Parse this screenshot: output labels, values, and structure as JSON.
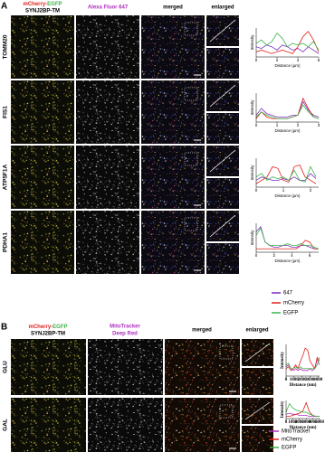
{
  "panel_a": {
    "label": "A",
    "headers": {
      "col1": [
        "mCherry-",
        "EGFP"
      ],
      "col1_line2": "SYNJ2BP-TM",
      "col2": "Alexa Fluor 647",
      "col3": "merged",
      "col4": "enlarged"
    },
    "rows": [
      "TOMM20",
      "FIS1",
      "ATP5F1A",
      "PDHA1"
    ]
  },
  "panel_b": {
    "label": "B",
    "headers": {
      "col1": [
        "mCherry-",
        "EGFP"
      ],
      "col1_line2": "SYNJ2BP-TM",
      "col2": "MitoTracker",
      "col2_line2": "Deep Red",
      "col3": "merged",
      "col4": "enlarged"
    },
    "rows": [
      "GLU",
      "GAL"
    ]
  },
  "chart_data": [
    {
      "type": "line",
      "ylabel": "Intensity",
      "xlabel": "Distance (µm)",
      "xlim": [
        0,
        6
      ],
      "xticks": [
        0,
        2,
        4,
        6
      ],
      "ylim": [
        0,
        0.85
      ],
      "x": [
        0,
        0.5,
        1,
        1.5,
        2,
        2.5,
        3,
        3.5,
        4,
        4.5,
        5,
        5.5,
        6
      ],
      "series": [
        {
          "name": "647",
          "color": "#7b2fbf",
          "values": [
            0.3,
            0.25,
            0.35,
            0.3,
            0.2,
            0.35,
            0.3,
            0.2,
            0.25,
            0.15,
            0.3,
            0.2,
            0.1
          ]
        },
        {
          "name": "mCherry",
          "color": "#e0201a",
          "values": [
            0.15,
            0.2,
            0.15,
            0.1,
            0.15,
            0.2,
            0.15,
            0.1,
            0.3,
            0.6,
            0.75,
            0.5,
            0.15
          ]
        },
        {
          "name": "EGFP",
          "color": "#3cb44b",
          "values": [
            0.4,
            0.5,
            0.35,
            0.45,
            0.7,
            0.55,
            0.3,
            0.4,
            0.35,
            0.4,
            0.3,
            0.45,
            0.2
          ]
        }
      ]
    },
    {
      "type": "line",
      "ylabel": "Intensity",
      "xlabel": "Distance (µm)",
      "xlim": [
        0,
        3
      ],
      "xticks": [
        0,
        1,
        2,
        3
      ],
      "ylim": [
        0,
        0.85
      ],
      "x": [
        0,
        0.25,
        0.5,
        0.75,
        1,
        1.25,
        1.5,
        1.75,
        2,
        2.25,
        2.5,
        2.75,
        3
      ],
      "series": [
        {
          "name": "647",
          "color": "#7b2fbf",
          "values": [
            0.2,
            0.4,
            0.25,
            0.2,
            0.15,
            0.15,
            0.15,
            0.2,
            0.2,
            0.6,
            0.35,
            0.2,
            0.15
          ]
        },
        {
          "name": "mCherry",
          "color": "#e0201a",
          "values": [
            0.1,
            0.3,
            0.15,
            0.1,
            0.1,
            0.1,
            0.1,
            0.15,
            0.2,
            0.7,
            0.4,
            0.15,
            0.1
          ]
        },
        {
          "name": "EGFP",
          "color": "#3cb44b",
          "values": [
            0.15,
            0.3,
            0.2,
            0.15,
            0.1,
            0.1,
            0.1,
            0.15,
            0.2,
            0.5,
            0.3,
            0.15,
            0.1
          ]
        }
      ]
    },
    {
      "type": "line",
      "ylabel": "Intensity",
      "xlabel": "Distance (µm)",
      "xlim": [
        0,
        2.3
      ],
      "xticks": [
        0,
        1,
        2
      ],
      "ylim": [
        0,
        0.85
      ],
      "x": [
        0,
        0.2,
        0.4,
        0.6,
        0.8,
        1,
        1.2,
        1.4,
        1.6,
        1.8,
        2,
        2.2
      ],
      "series": [
        {
          "name": "647",
          "color": "#7b2fbf",
          "values": [
            0.2,
            0.3,
            0.25,
            0.2,
            0.2,
            0.25,
            0.2,
            0.3,
            0.2,
            0.2,
            0.4,
            0.25
          ]
        },
        {
          "name": "mCherry",
          "color": "#e0201a",
          "values": [
            0.1,
            0.2,
            0.3,
            0.6,
            0.55,
            0.2,
            0.15,
            0.6,
            0.65,
            0.3,
            0.2,
            0.1
          ]
        },
        {
          "name": "EGFP",
          "color": "#3cb44b",
          "values": [
            0.3,
            0.4,
            0.2,
            0.3,
            0.25,
            0.3,
            0.2,
            0.5,
            0.2,
            0.15,
            0.6,
            0.3
          ]
        }
      ]
    },
    {
      "type": "line",
      "ylabel": "Intensity",
      "xlabel": "Distance (µm)",
      "xlim": [
        0,
        7
      ],
      "xticks": [
        0,
        2,
        4,
        6
      ],
      "ylim": [
        0,
        0.85
      ],
      "x": [
        0,
        0.5,
        1,
        1.5,
        2,
        2.5,
        3,
        3.5,
        4,
        4.5,
        5,
        5.5,
        6,
        6.5,
        7
      ],
      "series": [
        {
          "name": "647",
          "color": "#7b2fbf",
          "values": [
            0.6,
            0.75,
            0.3,
            0.2,
            0.15,
            0.15,
            0.2,
            0.2,
            0.15,
            0.15,
            0.2,
            0.2,
            0.15,
            0.1,
            0.1
          ]
        },
        {
          "name": "mCherry",
          "color": "#e0201a",
          "values": [
            0.1,
            0.1,
            0.1,
            0.1,
            0.1,
            0.1,
            0.1,
            0.1,
            0.1,
            0.1,
            0.2,
            0.35,
            0.3,
            0.1,
            0.1
          ]
        },
        {
          "name": "EGFP",
          "color": "#3cb44b",
          "values": [
            0.5,
            0.7,
            0.3,
            0.2,
            0.2,
            0.2,
            0.2,
            0.25,
            0.2,
            0.2,
            0.25,
            0.2,
            0.2,
            0.15,
            0.1
          ]
        }
      ]
    },
    {
      "type": "line",
      "ylabel": "Intensity",
      "xlabel": "Distance (nm)",
      "xlim": [
        0,
        4200
      ],
      "xticks": [
        0,
        1000,
        2000,
        3000,
        4000
      ],
      "ylim": [
        0,
        0.85
      ],
      "x": [
        0,
        300,
        600,
        900,
        1200,
        1500,
        1800,
        2100,
        2400,
        2700,
        3000,
        3300,
        3600,
        3900,
        4200
      ],
      "series": [
        {
          "name": "MitoTracker",
          "color": "#b02fbf",
          "values": [
            0.25,
            0.3,
            0.2,
            0.15,
            0.2,
            0.15,
            0.2,
            0.15,
            0.15,
            0.15,
            0.2,
            0.15,
            0.2,
            0.45,
            0.3
          ]
        },
        {
          "name": "mCherry",
          "color": "#e0201a",
          "values": [
            0.2,
            0.25,
            0.15,
            0.2,
            0.3,
            0.2,
            0.4,
            0.55,
            0.75,
            0.7,
            0.4,
            0.3,
            0.2,
            0.5,
            0.4
          ]
        },
        {
          "name": "EGFP",
          "color": "#3cb44b",
          "values": [
            0.3,
            0.35,
            0.2,
            0.2,
            0.25,
            0.2,
            0.25,
            0.2,
            0.2,
            0.2,
            0.2,
            0.2,
            0.2,
            0.3,
            0.5
          ]
        }
      ]
    },
    {
      "type": "line",
      "ylabel": "Intensity",
      "xlabel": "Distance (nm)",
      "xlim": [
        0,
        5000
      ],
      "xticks": [
        0,
        1000,
        2000,
        3000,
        4000,
        5000
      ],
      "ylim": [
        0,
        0.85
      ],
      "x": [
        0,
        500,
        1000,
        1500,
        2000,
        2500,
        3000,
        3500,
        4000,
        4500,
        5000
      ],
      "series": [
        {
          "name": "MitoTracker",
          "color": "#b02fbf",
          "values": [
            0.2,
            0.25,
            0.2,
            0.2,
            0.15,
            0.15,
            0.15,
            0.1,
            0.1,
            0.1,
            0.1
          ]
        },
        {
          "name": "mCherry",
          "color": "#e0201a",
          "values": [
            0.1,
            0.1,
            0.15,
            0.2,
            0.25,
            0.35,
            0.75,
            0.3,
            0.15,
            0.1,
            0.1
          ]
        },
        {
          "name": "EGFP",
          "color": "#3cb44b",
          "values": [
            0.3,
            0.7,
            0.5,
            0.4,
            0.35,
            0.3,
            0.3,
            0.2,
            0.15,
            0.1,
            0.1
          ]
        }
      ]
    }
  ]
}
